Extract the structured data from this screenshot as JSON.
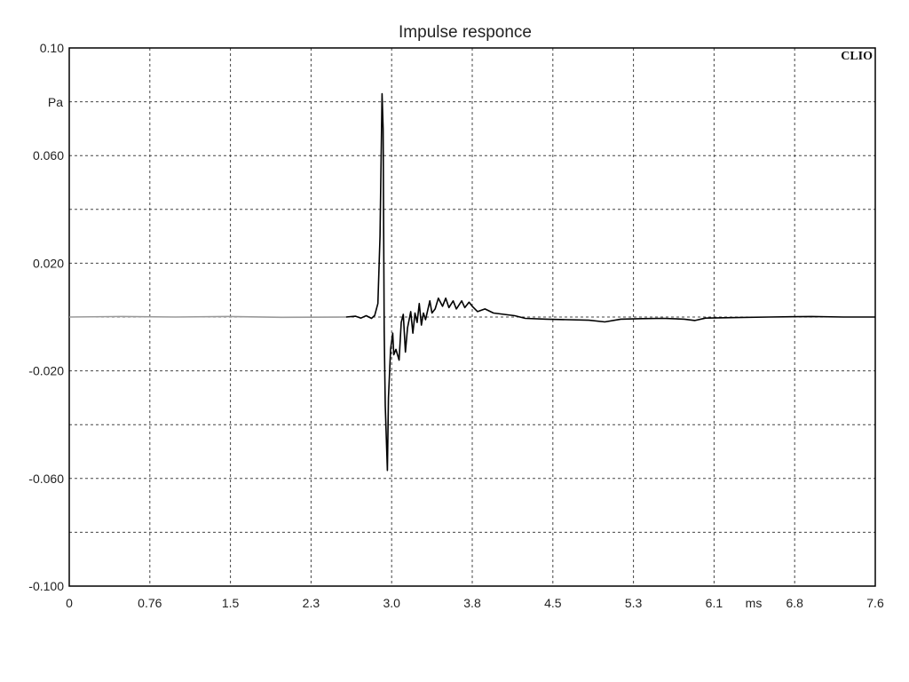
{
  "chart_data": {
    "type": "line",
    "title": "Impulse responce",
    "brand": "CLIO",
    "xlabel": "ms",
    "ylabel": "Pa",
    "xlim": [
      0,
      7.6
    ],
    "ylim": [
      -0.1,
      0.1
    ],
    "grid": true,
    "x_ticks": [
      "0",
      "0.76",
      "1.5",
      "2.3",
      "3.0",
      "3.8",
      "4.5",
      "5.3",
      "6.1",
      "6.8",
      "7.6"
    ],
    "y_ticks": [
      "0.10",
      "",
      "0.060",
      "",
      "0.020",
      "",
      "-0.020",
      "",
      "-0.060",
      "",
      "-0.100"
    ],
    "colors": {
      "pre_response": "#999999",
      "response": "#000000",
      "grid": "#444444",
      "frame": "#000000"
    },
    "series": [
      {
        "points": [
          [
            0.0,
            0.0
          ],
          [
            0.5,
            0.0002
          ],
          [
            1.0,
            0.0
          ],
          [
            1.5,
            0.0002
          ],
          [
            2.0,
            -0.0001
          ],
          [
            2.61,
            0.0
          ]
        ]
      },
      {
        "points": [
          [
            2.61,
            0.0
          ],
          [
            2.7,
            0.0003
          ],
          [
            2.75,
            -0.0004
          ],
          [
            2.8,
            0.0005
          ],
          [
            2.85,
            -0.0005
          ],
          [
            2.88,
            0.0006
          ],
          [
            2.91,
            0.005
          ],
          [
            2.93,
            0.03
          ],
          [
            2.94,
            0.058
          ],
          [
            2.95,
            0.083
          ],
          [
            2.96,
            0.07
          ],
          [
            2.97,
            -0.005
          ],
          [
            2.98,
            -0.033
          ],
          [
            3.0,
            -0.057
          ],
          [
            3.01,
            -0.03
          ],
          [
            3.03,
            -0.012
          ],
          [
            3.05,
            -0.006
          ],
          [
            3.06,
            -0.014
          ],
          [
            3.08,
            -0.012
          ],
          [
            3.11,
            -0.016
          ],
          [
            3.13,
            -0.002
          ],
          [
            3.15,
            0.001
          ],
          [
            3.17,
            -0.013
          ],
          [
            3.19,
            -0.004
          ],
          [
            3.22,
            0.002
          ],
          [
            3.24,
            -0.006
          ],
          [
            3.26,
            0.0015
          ],
          [
            3.28,
            -0.002
          ],
          [
            3.3,
            0.005
          ],
          [
            3.32,
            -0.003
          ],
          [
            3.34,
            0.0015
          ],
          [
            3.36,
            -0.001
          ],
          [
            3.4,
            0.006
          ],
          [
            3.42,
            0.0015
          ],
          [
            3.45,
            0.003
          ],
          [
            3.48,
            0.007
          ],
          [
            3.52,
            0.004
          ],
          [
            3.55,
            0.007
          ],
          [
            3.58,
            0.0035
          ],
          [
            3.62,
            0.006
          ],
          [
            3.65,
            0.003
          ],
          [
            3.7,
            0.006
          ],
          [
            3.73,
            0.0035
          ],
          [
            3.77,
            0.0055
          ],
          [
            3.8,
            0.004
          ],
          [
            3.85,
            0.002
          ],
          [
            3.92,
            0.003
          ],
          [
            4.0,
            0.0015
          ],
          [
            4.1,
            0.001
          ],
          [
            4.2,
            0.0005
          ],
          [
            4.3,
            -0.0005
          ],
          [
            4.5,
            -0.0008
          ],
          [
            4.7,
            -0.001
          ],
          [
            4.9,
            -0.0012
          ],
          [
            5.05,
            -0.0018
          ],
          [
            5.2,
            -0.0008
          ],
          [
            5.4,
            -0.0006
          ],
          [
            5.6,
            -0.0005
          ],
          [
            5.8,
            -0.0008
          ],
          [
            5.9,
            -0.0013
          ],
          [
            6.0,
            -0.0004
          ],
          [
            6.3,
            -0.0002
          ],
          [
            6.6,
            0.0
          ],
          [
            7.0,
            0.0002
          ],
          [
            7.3,
            0.0
          ],
          [
            7.6,
            0.0
          ]
        ]
      }
    ]
  }
}
